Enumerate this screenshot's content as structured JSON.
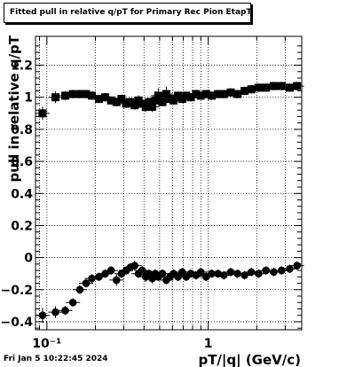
{
  "header": {
    "title": "Fitted pull in relative q/pT  for Primary Rec Pion EtapT"
  },
  "footer": {
    "timestamp": "Fri Jan  5 10:22:45 2024"
  },
  "colors": {
    "markers": "#000000",
    "grid": "#000000",
    "background": "#ffffff"
  },
  "chart_data": {
    "type": "scatter",
    "title": "Fitted pull in relative q/pT  for Primary Rec Pion EtapT",
    "xlabel": "pT/|q| (GeV/c)",
    "ylabel": "pull in relative q/pT",
    "xscale": "log",
    "xlim": [
      0.085,
      3.8
    ],
    "ylim": [
      -0.45,
      1.38
    ],
    "grid": true,
    "x_tick_labels": [
      {
        "value": 0.1,
        "label": "10⁻¹"
      },
      {
        "value": 1,
        "label": "1"
      }
    ],
    "y_tick_labels": [
      {
        "value": 1.2,
        "label": "1.2"
      },
      {
        "value": 1.0,
        "label": "1"
      },
      {
        "value": 0.8,
        "label": "0.8"
      },
      {
        "value": 0.6,
        "label": "0.6"
      },
      {
        "value": 0.4,
        "label": "0.4"
      },
      {
        "value": 0.2,
        "label": "0.2"
      },
      {
        "value": 0.0,
        "label": "0"
      },
      {
        "value": -0.2,
        "label": "−0.2"
      },
      {
        "value": -0.4,
        "label": "−0.4"
      }
    ],
    "series": [
      {
        "marker": "square",
        "x": [
          0.094,
          0.113,
          0.13,
          0.145,
          0.16,
          0.175,
          0.19,
          0.21,
          0.23,
          0.25,
          0.27,
          0.29,
          0.31,
          0.33,
          0.35,
          0.37,
          0.39,
          0.41,
          0.43,
          0.45,
          0.47,
          0.49,
          0.52,
          0.55,
          0.58,
          0.61,
          0.65,
          0.69,
          0.73,
          0.78,
          0.84,
          0.9,
          0.97,
          1.05,
          1.15,
          1.25,
          1.38,
          1.52,
          1.68,
          1.85,
          2.05,
          2.28,
          2.55,
          2.85,
          3.2,
          3.55
        ],
        "y": [
          0.9,
          1.0,
          1.01,
          1.02,
          1.02,
          1.02,
          1.01,
          0.99,
          1.0,
          0.98,
          0.97,
          0.99,
          0.96,
          0.97,
          0.95,
          0.98,
          0.96,
          0.94,
          0.97,
          0.94,
          0.98,
          1.01,
          0.97,
          1.02,
          0.99,
          0.98,
          1.01,
          0.99,
          1.01,
          1.0,
          1.02,
          1.01,
          1.02,
          1.01,
          1.02,
          1.02,
          1.03,
          1.02,
          1.04,
          1.05,
          1.06,
          1.06,
          1.07,
          1.07,
          1.06,
          1.07
        ],
        "yerr": [
          0.025,
          0.02,
          0.012,
          0.01,
          0.01,
          0.01,
          0.01,
          0.01,
          0.01,
          0.01,
          0.01,
          0.01,
          0.01,
          0.01,
          0.01,
          0.015,
          0.01,
          0.015,
          0.01,
          0.015,
          0.01,
          0.03,
          0.01,
          0.03,
          0.01,
          0.01,
          0.01,
          0.01,
          0.01,
          0.01,
          0.01,
          0.01,
          0.01,
          0.01,
          0.01,
          0.01,
          0.01,
          0.01,
          0.01,
          0.01,
          0.01,
          0.01,
          0.01,
          0.01,
          0.01,
          0.01
        ]
      },
      {
        "marker": "circle",
        "x": [
          0.094,
          0.113,
          0.13,
          0.145,
          0.16,
          0.175,
          0.19,
          0.21,
          0.23,
          0.25,
          0.27,
          0.29,
          0.31,
          0.33,
          0.35,
          0.37,
          0.39,
          0.41,
          0.43,
          0.45,
          0.47,
          0.49,
          0.52,
          0.55,
          0.58,
          0.61,
          0.65,
          0.69,
          0.73,
          0.78,
          0.84,
          0.9,
          0.97,
          1.05,
          1.15,
          1.25,
          1.38,
          1.52,
          1.68,
          1.85,
          2.05,
          2.28,
          2.55,
          2.85,
          3.2,
          3.55
        ],
        "y": [
          -0.36,
          -0.34,
          -0.33,
          -0.28,
          -0.2,
          -0.16,
          -0.13,
          -0.12,
          -0.1,
          -0.08,
          -0.14,
          -0.1,
          -0.08,
          -0.06,
          -0.05,
          -0.1,
          -0.08,
          -0.12,
          -0.1,
          -0.13,
          -0.1,
          -0.12,
          -0.1,
          -0.14,
          -0.12,
          -0.1,
          -0.12,
          -0.09,
          -0.12,
          -0.1,
          -0.11,
          -0.09,
          -0.12,
          -0.1,
          -0.1,
          -0.11,
          -0.09,
          -0.1,
          -0.11,
          -0.09,
          -0.1,
          -0.08,
          -0.09,
          -0.08,
          -0.07,
          -0.05
        ],
        "yerr": [
          0.03,
          0.02,
          0.012,
          0.01,
          0.01,
          0.01,
          0.01,
          0.01,
          0.01,
          0.01,
          0.02,
          0.01,
          0.01,
          0.01,
          0.015,
          0.01,
          0.01,
          0.015,
          0.01,
          0.015,
          0.01,
          0.01,
          0.01,
          0.01,
          0.01,
          0.01,
          0.01,
          0.01,
          0.01,
          0.01,
          0.01,
          0.01,
          0.01,
          0.01,
          0.01,
          0.01,
          0.01,
          0.01,
          0.01,
          0.01,
          0.01,
          0.01,
          0.01,
          0.01,
          0.01,
          0.01
        ]
      }
    ]
  }
}
